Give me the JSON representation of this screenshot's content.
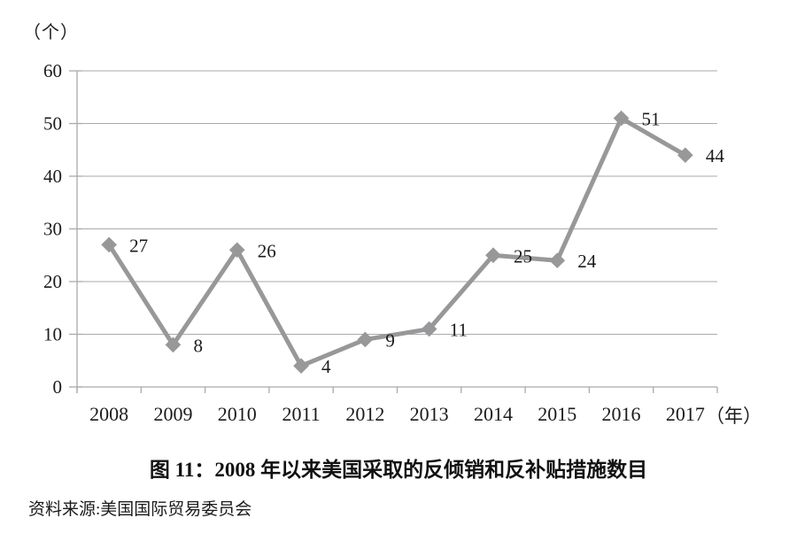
{
  "chart_data": {
    "type": "line",
    "title": "图 11：2008 年以来美国采取的反倾销和反补贴措施数目",
    "source": "资料来源:美国国际贸易委员会",
    "y_unit_label": "（个）",
    "x_unit_label": "（年）",
    "categories": [
      "2008",
      "2009",
      "2010",
      "2011",
      "2012",
      "2013",
      "2014",
      "2015",
      "2016",
      "2017"
    ],
    "values": [
      27,
      8,
      26,
      4,
      9,
      11,
      25,
      24,
      51,
      44
    ],
    "ylim": [
      0,
      60
    ],
    "y_ticks": [
      0,
      10,
      20,
      30,
      40,
      50,
      60
    ],
    "grid": true,
    "legend_position": "none",
    "marker": "diamond",
    "line_color": "#98989a",
    "axis_color": "#aaaaaa",
    "text_color": "#1b1b1b"
  }
}
